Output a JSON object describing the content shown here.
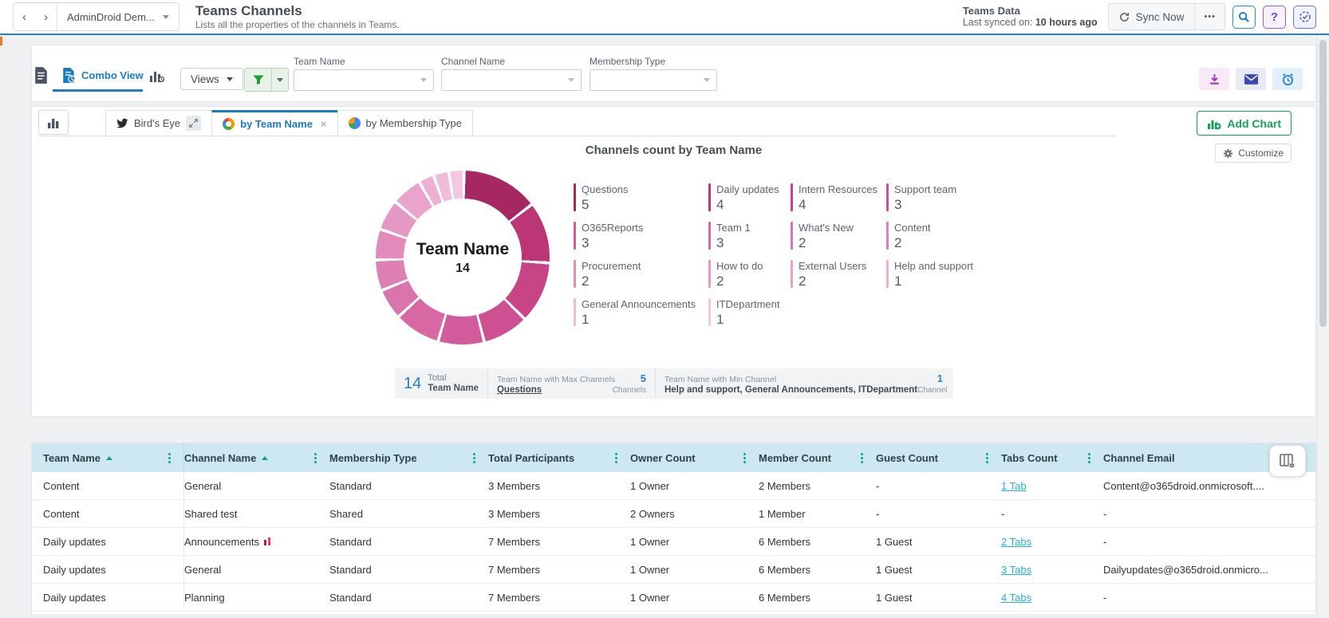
{
  "icons": {
    "back": "‹",
    "forward": "›",
    "more": "•••",
    "close": "×"
  },
  "header": {
    "tenant": "AdminDroid Dem...",
    "title": "Teams Channels",
    "subtitle": "Lists all the properties of the channels in Teams.",
    "data_source": "Teams Data",
    "last_synced_label": "Last synced on:",
    "last_synced_value": "10 hours ago",
    "sync_button": "Sync Now"
  },
  "toolbar": {
    "combo_view": "Combo View",
    "views": "Views",
    "filters": [
      {
        "label": "Team Name",
        "value": ""
      },
      {
        "label": "Channel Name",
        "value": ""
      },
      {
        "label": "Membership Type",
        "value": ""
      }
    ]
  },
  "chart_tabs": {
    "tabs": [
      {
        "label": "Bird's Eye"
      },
      {
        "label": "by Team Name",
        "active": true
      },
      {
        "label": "by Membership Type"
      }
    ],
    "add_chart": "Add Chart",
    "customize": "Customize"
  },
  "chart_data": {
    "type": "pie",
    "subtype": "donut",
    "title": "Channels count by Team Name",
    "center_label": "Team Name",
    "center_value": "14",
    "categories": [
      "Questions",
      "Daily updates",
      "Intern Resources",
      "Support team",
      "O365Reports",
      "Team 1",
      "What's New",
      "Content",
      "Procurement",
      "How to do",
      "External Users",
      "Help and support",
      "General Announcements",
      "ITDepartment"
    ],
    "values": [
      5,
      4,
      4,
      3,
      3,
      3,
      2,
      2,
      2,
      2,
      2,
      1,
      1,
      1
    ],
    "colors": [
      "#a62863",
      "#bc3677",
      "#c74487",
      "#cd5092",
      "#d25c9b",
      "#d768a4",
      "#db74ac",
      "#df80b4",
      "#e38cbc",
      "#e698c4",
      "#eaa4cb",
      "#edb0d2",
      "#f0bcd9",
      "#f3c8e0"
    ],
    "legend_position": "right",
    "legend_rows": 4,
    "legend_columns": 4
  },
  "summary": {
    "total": {
      "value": "14",
      "label": "Total",
      "sublabel": "Team Name"
    },
    "max": {
      "title": "Team Name with Max Channels",
      "name": "Questions",
      "value": "5",
      "unit": "Channels"
    },
    "min": {
      "title": "Team Name with Min Channel",
      "name": "Help and support, General Announcements, ITDepartment",
      "value": "1",
      "unit": "Channel"
    }
  },
  "table": {
    "columns": [
      {
        "label": "Team Name",
        "sorted": true
      },
      {
        "label": "Channel Name",
        "sorted": true
      },
      {
        "label": "Membership Type",
        "sorted": false
      },
      {
        "label": "Total Participants",
        "sorted": false
      },
      {
        "label": "Owner Count",
        "sorted": false
      },
      {
        "label": "Member Count",
        "sorted": false
      },
      {
        "label": "Guest Count",
        "sorted": false
      },
      {
        "label": "Tabs Count",
        "sorted": false
      },
      {
        "label": "Channel Email",
        "sorted": false
      }
    ],
    "rows": [
      {
        "team": "Content",
        "channel": "General",
        "channel_badge": false,
        "membership": "Standard",
        "total": "3 Members",
        "owners": "1 Owner",
        "members": "2 Members",
        "guests": "-",
        "tabs": "1 Tab",
        "tabs_is_link": true,
        "email": "Content@o365droid.onmicrosoft...."
      },
      {
        "team": "Content",
        "channel": "Shared test",
        "channel_badge": false,
        "membership": "Shared",
        "total": "3 Members",
        "owners": "2 Owners",
        "members": "1 Member",
        "guests": "-",
        "tabs": "-",
        "tabs_is_link": false,
        "email": "-"
      },
      {
        "team": "Daily updates",
        "channel": "Announcements",
        "channel_badge": true,
        "membership": "Standard",
        "total": "7 Members",
        "owners": "1 Owner",
        "members": "6 Members",
        "guests": "1 Guest",
        "tabs": "2 Tabs",
        "tabs_is_link": true,
        "email": "-"
      },
      {
        "team": "Daily updates",
        "channel": "General",
        "channel_badge": false,
        "membership": "Standard",
        "total": "7 Members",
        "owners": "1 Owner",
        "members": "6 Members",
        "guests": "1 Guest",
        "tabs": "3 Tabs",
        "tabs_is_link": true,
        "email": "Dailyupdates@o365droid.onmicro..."
      },
      {
        "team": "Daily updates",
        "channel": "Planning",
        "channel_badge": false,
        "membership": "Standard",
        "total": "7 Members",
        "owners": "1 Owner",
        "members": "6 Members",
        "guests": "1 Guest",
        "tabs": "4 Tabs",
        "tabs_is_link": true,
        "email": "-"
      }
    ]
  }
}
